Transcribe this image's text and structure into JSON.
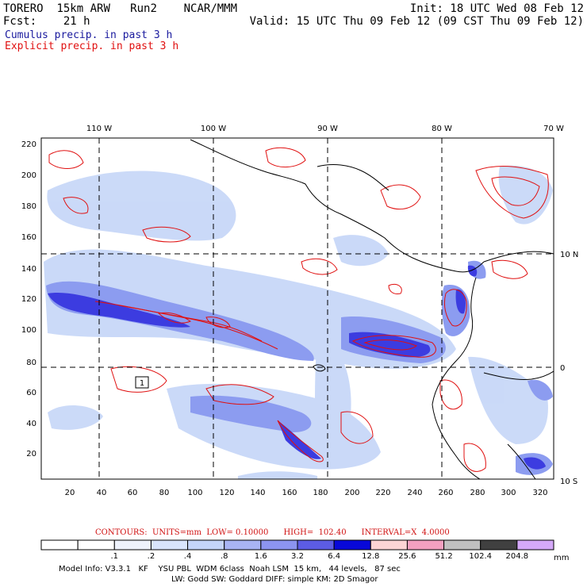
{
  "header": {
    "model": "TORERO",
    "resolution": "15km ARW",
    "run": "Run2",
    "org": "NCAR/MMM",
    "init": "Init: 18 UTC Wed 08 Feb 12",
    "fcst_label": "Fcst:",
    "fcst_value": "21 h",
    "valid": "Valid: 15 UTC Thu 09 Feb 12 (09 CST Thu 09 Feb 12)"
  },
  "fields": {
    "cumulus": "Cumulus precip. in past 3 h",
    "explicit": "Explicit precip. in past 3 h"
  },
  "map": {
    "lon_labels": [
      "110 W",
      "100 W",
      "90 W",
      "80 W",
      "70 W"
    ],
    "lat_labels": [
      "10 N",
      "0",
      "10 S"
    ],
    "x_ticks": [
      "20",
      "40",
      "60",
      "80",
      "100",
      "120",
      "140",
      "160",
      "180",
      "200",
      "220",
      "240",
      "260",
      "280",
      "300",
      "320"
    ],
    "y_ticks": [
      "20",
      "40",
      "60",
      "80",
      "100",
      "120",
      "140",
      "160",
      "180",
      "200",
      "220"
    ],
    "box_label": "1",
    "colors": {
      "cumulus_light": "#c8d8f8",
      "cumulus_mid": "#8c9cf0",
      "cumulus_dark": "#3c3ce0",
      "cumulus_peak": "#0000d0",
      "explicit_contour": "#e01010"
    }
  },
  "contours_line": "CONTOURS:  UNITS=mm  LOW= 0.10000      HIGH=  102.40      INTERVAL=X  4.0000",
  "colorbar": {
    "labels": [
      ".1",
      ".2",
      ".4",
      ".8",
      "1.6",
      "3.2",
      "6.4",
      "12.8",
      "25.6",
      "51.2",
      "102.4",
      "204.8"
    ],
    "unit": "mm",
    "colors": [
      "#ffffff",
      "#ffffff",
      "#eef2fc",
      "#d8e4fc",
      "#c4d4f8",
      "#a8b4f4",
      "#8c94f0",
      "#5c5ce4",
      "#0808d8",
      "#fcd4d4",
      "#f4a0c0",
      "#c0c0c0",
      "#404040",
      "#d4a8f8"
    ]
  },
  "footer": {
    "line1": "Model Info: V3.3.1   KF    YSU PBL  WDM 6class  Noah LSM  15 km,   44 levels,   87 sec",
    "line2": "LW: Godd SW: Goddard DIFF: simple KM: 2D Smagor"
  }
}
